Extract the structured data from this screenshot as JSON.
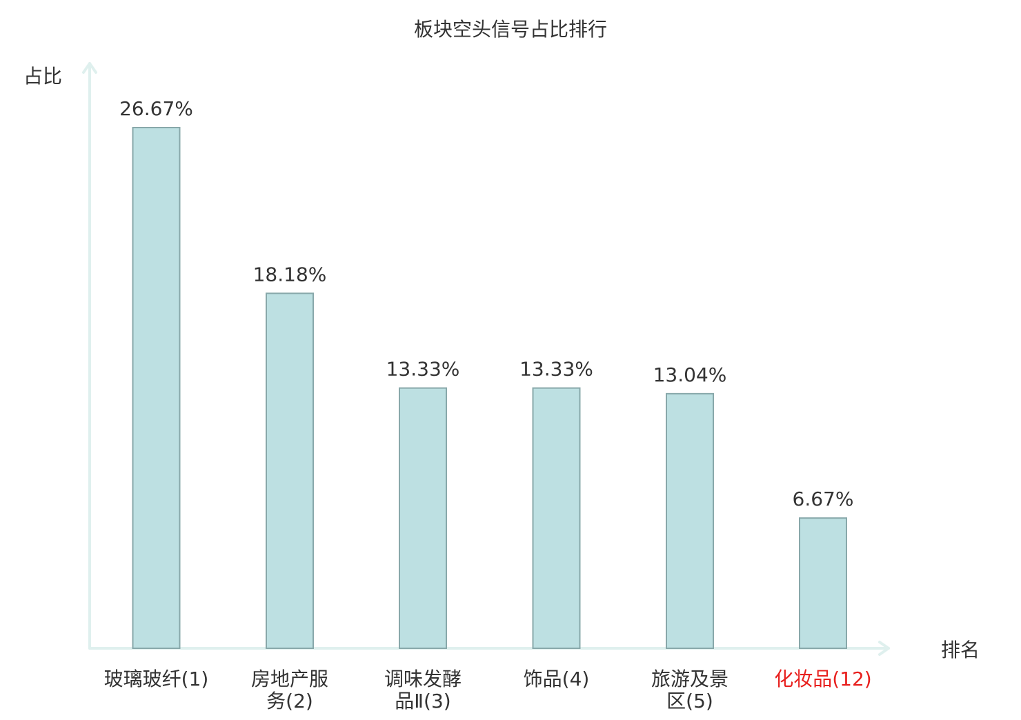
{
  "chart_data": {
    "type": "bar",
    "title": "板块空头信号占比排行",
    "ylabel": "占比",
    "xlabel": "排名",
    "categories": [
      [
        "玻璃玻纤(1)"
      ],
      [
        "房地产服",
        "务(2)"
      ],
      [
        "调味发酵",
        "品Ⅱ(3)"
      ],
      [
        "饰品(4)"
      ],
      [
        "旅游及景",
        "区(5)"
      ],
      [
        "化妆品(12)"
      ]
    ],
    "highlight_index": 5,
    "values": [
      26.67,
      18.18,
      13.33,
      13.33,
      13.04,
      6.67
    ],
    "value_labels": [
      "26.67%",
      "18.18%",
      "13.33%",
      "13.33%",
      "13.04%",
      "6.67%"
    ],
    "ylim": [
      0,
      26.67
    ],
    "grid": false,
    "colors": {
      "bar_fill": "#bde0e2",
      "bar_stroke": "#88a8aa",
      "axis": "#dff0ee",
      "text": "#333333",
      "highlight": "#e8201e"
    }
  }
}
